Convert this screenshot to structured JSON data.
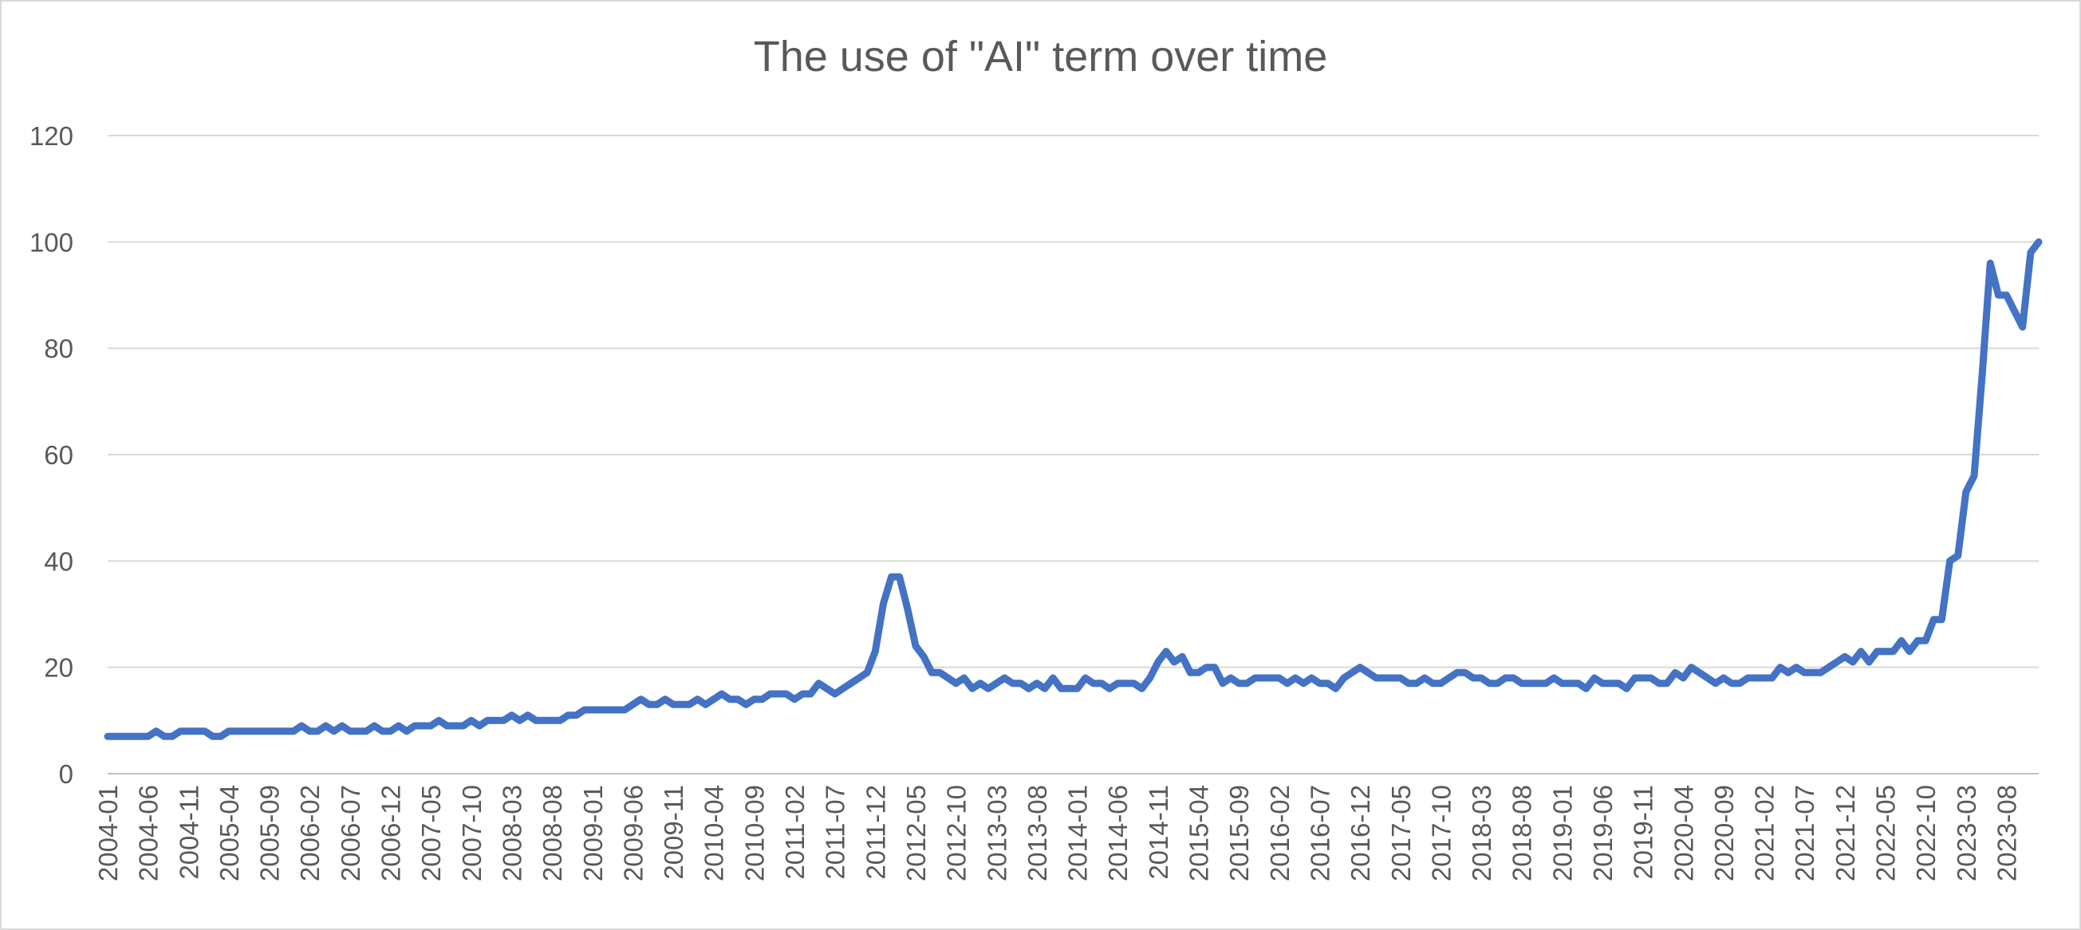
{
  "chart_data": {
    "type": "line",
    "title": "The use of \"AI\" term over time",
    "xlabel": "",
    "ylabel": "",
    "ylim": [
      0,
      120
    ],
    "y_ticks": [
      0,
      20,
      40,
      60,
      80,
      100,
      120
    ],
    "grid": true,
    "legend": "none",
    "start_month": "2004-01",
    "x_tick_labels": [
      "2004-01",
      "2004-06",
      "2004-11",
      "2005-04",
      "2005-09",
      "2006-02",
      "2006-07",
      "2006-12",
      "2007-05",
      "2007-10",
      "2008-03",
      "2008-08",
      "2009-01",
      "2009-06",
      "2009-11",
      "2010-04",
      "2010-09",
      "2011-02",
      "2011-07",
      "2011-12",
      "2012-05",
      "2012-10",
      "2013-03",
      "2013-08",
      "2014-01",
      "2014-06",
      "2014-11",
      "2015-04",
      "2015-09",
      "2016-02",
      "2016-07",
      "2016-12",
      "2017-05",
      "2017-10",
      "2018-03",
      "2018-08",
      "2019-01",
      "2019-06",
      "2019-11",
      "2020-04",
      "2020-09",
      "2021-02",
      "2021-07",
      "2021-12",
      "2022-05",
      "2022-10",
      "2023-03",
      "2023-08"
    ],
    "series": [
      {
        "color": "#4472c4",
        "values": [
          7,
          7,
          7,
          7,
          7,
          7,
          8,
          7,
          7,
          8,
          8,
          8,
          8,
          7,
          7,
          8,
          8,
          8,
          8,
          8,
          8,
          8,
          8,
          8,
          9,
          8,
          8,
          9,
          8,
          9,
          8,
          8,
          8,
          9,
          8,
          8,
          9,
          8,
          9,
          9,
          9,
          10,
          9,
          9,
          9,
          10,
          9,
          10,
          10,
          10,
          11,
          10,
          11,
          10,
          10,
          10,
          10,
          11,
          11,
          12,
          12,
          12,
          12,
          12,
          12,
          13,
          14,
          13,
          13,
          14,
          13,
          13,
          13,
          14,
          13,
          14,
          15,
          14,
          14,
          13,
          14,
          14,
          15,
          15,
          15,
          14,
          15,
          15,
          17,
          16,
          15,
          16,
          17,
          18,
          19,
          23,
          32,
          37,
          37,
          31,
          24,
          22,
          19,
          19,
          18,
          17,
          18,
          16,
          17,
          16,
          17,
          18,
          17,
          17,
          16,
          17,
          16,
          18,
          16,
          16,
          16,
          18,
          17,
          17,
          16,
          17,
          17,
          17,
          16,
          18,
          21,
          23,
          21,
          22,
          19,
          19,
          20,
          20,
          17,
          18,
          17,
          17,
          18,
          18,
          18,
          18,
          17,
          18,
          17,
          18,
          17,
          17,
          16,
          18,
          19,
          20,
          19,
          18,
          18,
          18,
          18,
          17,
          17,
          18,
          17,
          17,
          18,
          19,
          19,
          18,
          18,
          17,
          17,
          18,
          18,
          17,
          17,
          17,
          17,
          18,
          17,
          17,
          17,
          16,
          18,
          17,
          17,
          17,
          16,
          18,
          18,
          18,
          17,
          17,
          19,
          18,
          20,
          19,
          18,
          17,
          18,
          17,
          17,
          18,
          18,
          18,
          18,
          20,
          19,
          20,
          19,
          19,
          19,
          20,
          21,
          22,
          21,
          23,
          21,
          23,
          23,
          23,
          25,
          23,
          25,
          25,
          29,
          29,
          40,
          41,
          53,
          56,
          75,
          96,
          90,
          90,
          87,
          84,
          98,
          100
        ]
      }
    ]
  }
}
